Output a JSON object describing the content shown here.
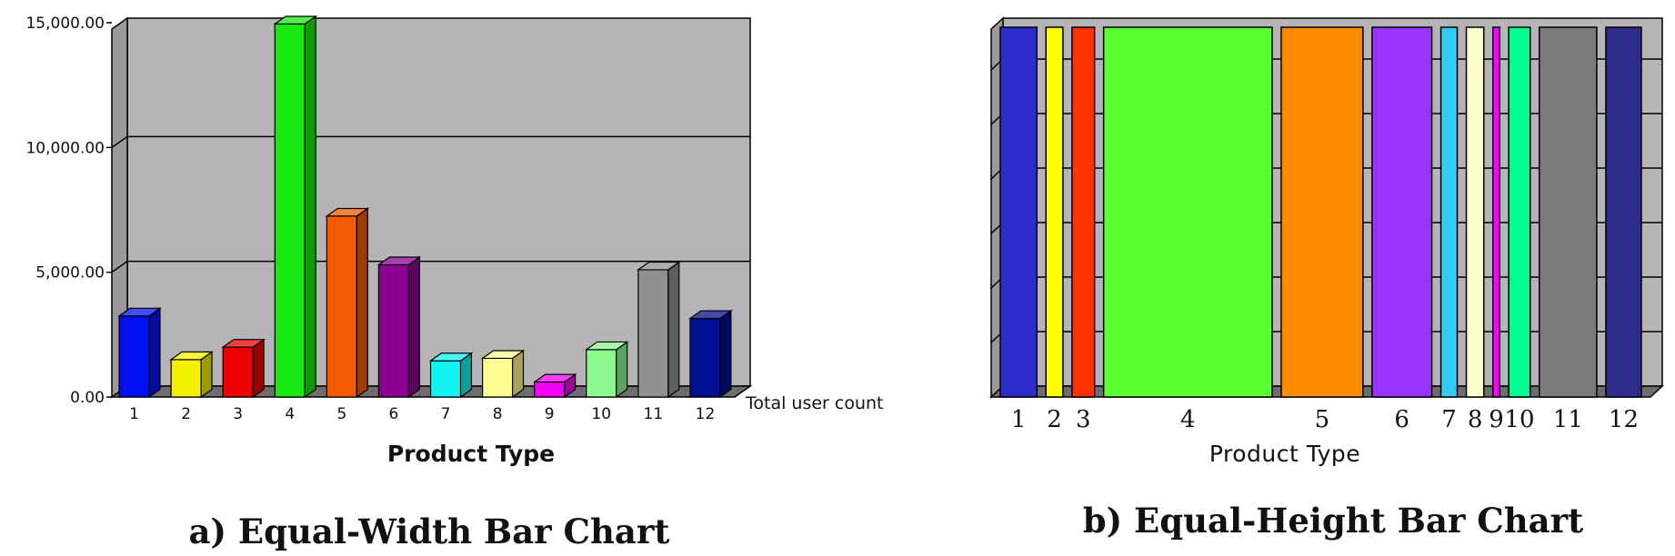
{
  "chart_data": [
    {
      "type": "bar",
      "caption": "a) Equal-Width Bar Chart",
      "xlabel": "Product Type",
      "ylabel": "",
      "series_label": "Total user count",
      "categories": [
        "1",
        "2",
        "3",
        "4",
        "5",
        "6",
        "7",
        "8",
        "9",
        "10",
        "11",
        "12"
      ],
      "values": [
        3250,
        1500,
        2000,
        14950,
        7250,
        5300,
        1450,
        1550,
        600,
        1900,
        5100,
        3150
      ],
      "colors": [
        "#0010f0",
        "#f4f000",
        "#ee0000",
        "#19e810",
        "#f45a00",
        "#8a0090",
        "#10f4f4",
        "#fffd90",
        "#f400f4",
        "#8ef890",
        "#909090",
        "#000f90"
      ],
      "ylim": [
        0,
        15000
      ],
      "yticks": [
        "0.00",
        "5,000.00",
        "10,000.00",
        "15,000.00"
      ],
      "grid": true
    },
    {
      "type": "bar",
      "caption": "b) Equal-Height Bar Chart",
      "xlabel": "Product Type",
      "categories": [
        "1",
        "2",
        "3",
        "4",
        "5",
        "6",
        "7",
        "8",
        "9",
        "10",
        "11",
        "12"
      ],
      "widths": [
        3250,
        1500,
        2000,
        14950,
        7250,
        5300,
        1450,
        1550,
        600,
        1900,
        5100,
        3150
      ],
      "colors": [
        "#2c2ccc",
        "#ffff00",
        "#ff3300",
        "#5cff30",
        "#ff8c00",
        "#9933ff",
        "#33ccf4",
        "#ffffcc",
        "#ff00ff",
        "#00ff90",
        "#7a7a7a",
        "#2c2c8c"
      ],
      "grid": true
    }
  ]
}
